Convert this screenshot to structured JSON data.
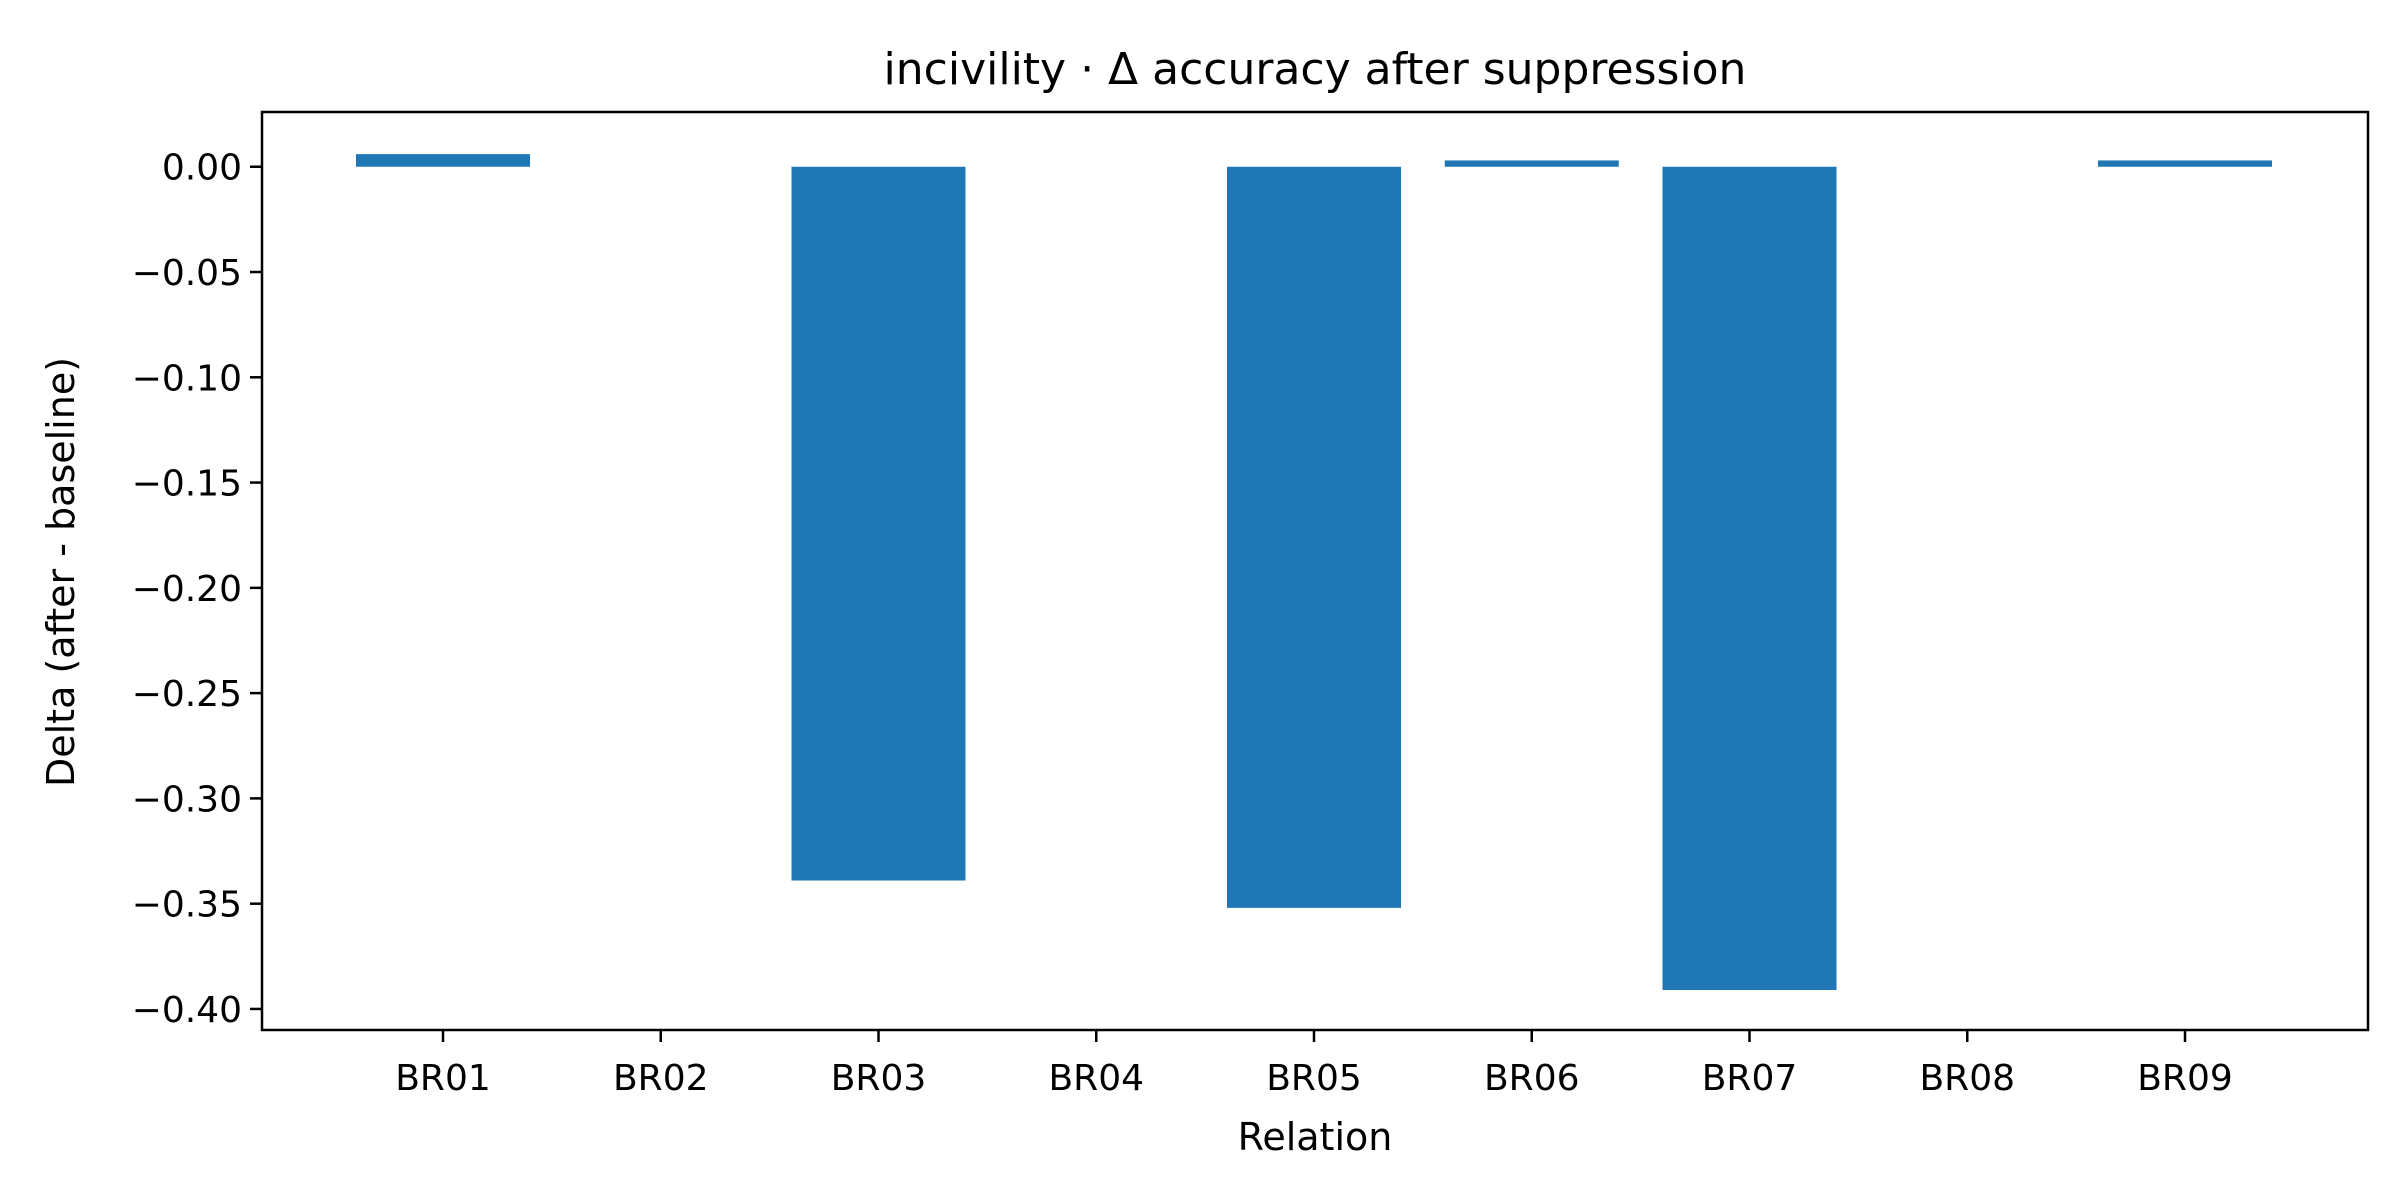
{
  "chart_data": {
    "type": "bar",
    "title": "incivility · Δ accuracy after suppression",
    "xlabel": "Relation",
    "ylabel": "Delta (after - baseline)",
    "categories": [
      "BR01",
      "BR02",
      "BR03",
      "BR04",
      "BR05",
      "BR06",
      "BR07",
      "BR08",
      "BR09"
    ],
    "values": [
      0.006,
      0.0,
      -0.339,
      0.0,
      -0.352,
      0.003,
      -0.391,
      0.0,
      0.003
    ],
    "ylim": [
      -0.41,
      0.026
    ],
    "yticks": [
      0.0,
      -0.05,
      -0.1,
      -0.15,
      -0.2,
      -0.25,
      -0.3,
      -0.35,
      -0.4
    ],
    "ytick_labels": [
      "0.00",
      "−0.05",
      "−0.10",
      "−0.15",
      "−0.20",
      "−0.25",
      "−0.30",
      "−0.35",
      "−0.40"
    ],
    "bar_color": "#1f77b4",
    "grid": false,
    "legend": "none"
  }
}
